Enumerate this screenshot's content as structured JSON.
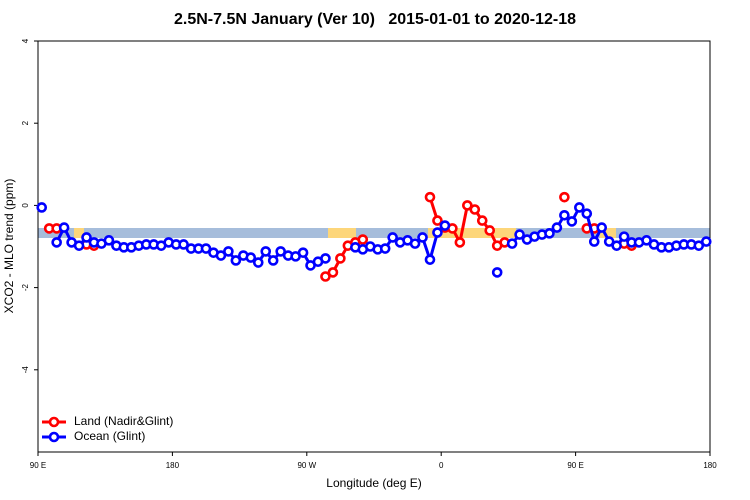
{
  "chart_data": {
    "type": "line",
    "title": "2.5N-7.5N January (Ver 10)   2015-01-01 to 2020-12-18",
    "x_label": "Longitude (deg E)",
    "y_label": "XCO2 - MLO trend (ppm)",
    "xlim": [
      -270,
      180
    ],
    "ylim": [
      -6,
      4
    ],
    "xticks": [
      {
        "value": -270,
        "label": "90 E"
      },
      {
        "value": -180,
        "label": "180"
      },
      {
        "value": -90,
        "label": "90 W"
      },
      0,
      {
        "value": 90,
        "label": "90 E"
      },
      180
    ],
    "yticks": [
      -4,
      -2,
      0,
      2,
      4
    ],
    "grid": false,
    "legend": "bottom-left",
    "x": [
      -267.5,
      -262.5,
      -257.5,
      -252.5,
      -247.5,
      -242.5,
      -237.5,
      -232.5,
      -227.5,
      -222.5,
      -217.5,
      -212.5,
      -207.5,
      -202.5,
      -197.5,
      -192.5,
      -187.5,
      -182.5,
      -177.5,
      -172.5,
      -167.5,
      -162.5,
      -157.5,
      -152.5,
      -147.5,
      -142.5,
      -137.5,
      -132.5,
      -127.5,
      -122.5,
      -117.5,
      -112.5,
      -107.5,
      -102.5,
      -97.5,
      -92.5,
      -87.5,
      -82.5,
      -77.5,
      -72.5,
      -67.5,
      -62.5,
      -57.5,
      -52.5,
      -47.5,
      -42.5,
      -37.5,
      -32.5,
      -27.5,
      -22.5,
      -17.5,
      -12.5,
      -7.5,
      -2.5,
      2.5,
      7.5,
      12.5,
      17.5,
      22.5,
      27.5,
      32.5,
      37.5,
      42.5,
      47.5,
      52.5,
      57.5,
      62.5,
      67.5,
      72.5,
      77.5,
      82.5,
      87.5,
      92.5,
      97.5,
      102.5,
      107.5,
      112.5,
      117.5,
      122.5,
      127.5,
      132.5,
      137.5,
      142.5,
      147.5,
      152.5,
      157.5,
      162.5,
      167.5,
      172.5,
      177.5
    ],
    "series": [
      {
        "name": "Land (Nadir&Glint)",
        "color": "#ff0000",
        "values": [
          null,
          -0.56,
          -0.56,
          null,
          null,
          null,
          -0.95,
          -0.98,
          null,
          null,
          null,
          null,
          null,
          null,
          null,
          null,
          null,
          null,
          null,
          null,
          null,
          null,
          null,
          null,
          null,
          null,
          null,
          null,
          null,
          null,
          null,
          null,
          null,
          null,
          null,
          null,
          null,
          null,
          -1.73,
          -1.63,
          -1.29,
          -0.98,
          -0.9,
          -0.83,
          null,
          null,
          null,
          null,
          null,
          null,
          null,
          null,
          0.2,
          -0.37,
          -0.54,
          -0.56,
          -0.9,
          0.0,
          -0.1,
          -0.37,
          -0.61,
          -0.98,
          -0.9,
          null,
          null,
          null,
          null,
          null,
          null,
          null,
          0.2,
          null,
          null,
          -0.56,
          -0.56,
          null,
          null,
          null,
          -0.93,
          -0.98,
          null,
          null,
          null,
          null,
          null,
          null,
          null,
          null,
          null,
          null
        ]
      },
      {
        "name": "Ocean (Glint)",
        "color": "#0000ff",
        "values": [
          -0.05,
          null,
          -0.9,
          -0.54,
          -0.9,
          -0.98,
          -0.78,
          -0.9,
          -0.93,
          -0.85,
          -0.98,
          -1.02,
          -1.02,
          -0.98,
          -0.95,
          -0.95,
          -0.98,
          -0.9,
          -0.95,
          -0.95,
          -1.05,
          -1.05,
          -1.05,
          -1.15,
          -1.22,
          -1.12,
          -1.34,
          -1.22,
          -1.27,
          -1.39,
          -1.12,
          -1.34,
          -1.12,
          -1.22,
          -1.24,
          -1.15,
          -1.46,
          -1.37,
          -1.29,
          null,
          null,
          null,
          -1.02,
          -1.07,
          -1.0,
          -1.07,
          -1.05,
          -0.78,
          -0.9,
          -0.85,
          -0.93,
          -0.78,
          -1.32,
          -0.66,
          -0.49,
          null,
          null,
          null,
          null,
          null,
          null,
          -1.63,
          null,
          -0.93,
          -0.71,
          -0.83,
          -0.76,
          -0.71,
          -0.68,
          -0.54,
          -0.24,
          -0.39,
          -0.05,
          -0.2,
          -0.88,
          -0.54,
          -0.88,
          -0.98,
          -0.76,
          -0.9,
          -0.9,
          -0.85,
          -0.95,
          -1.02,
          -1.02,
          -0.98,
          -0.95,
          -0.95,
          -0.98,
          -0.88
        ]
      }
    ]
  }
}
